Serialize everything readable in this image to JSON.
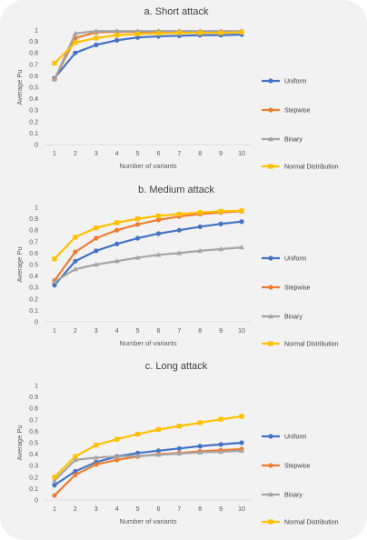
{
  "chart_data": [
    {
      "type": "line",
      "title": "a. Short attack",
      "xlabel": "Number of variants",
      "ylabel": "Average Pu",
      "ylim": [
        0,
        1
      ],
      "yticks": [
        "0",
        "0.1",
        "0.2",
        "0.3",
        "0.4",
        "0.5",
        "0.6",
        "0.7",
        "0.8",
        "0.9",
        "1"
      ],
      "categories": [
        "1",
        "2",
        "3",
        "4",
        "5",
        "6",
        "7",
        "8",
        "9",
        "10"
      ],
      "legend_position": "right",
      "grid": false,
      "series": [
        {
          "name": "Uniform",
          "color": "#4472c4",
          "values": [
            0.58,
            0.8,
            0.87,
            0.91,
            0.935,
            0.945,
            0.95,
            0.955,
            0.955,
            0.96
          ]
        },
        {
          "name": "Stepwise",
          "color": "#ed7d31",
          "values": [
            0.57,
            0.93,
            0.98,
            0.985,
            0.985,
            0.985,
            0.985,
            0.985,
            0.985,
            0.985
          ]
        },
        {
          "name": "Binary",
          "color": "#a5a5a5",
          "values": [
            0.57,
            0.97,
            0.99,
            0.99,
            0.99,
            0.99,
            0.99,
            0.99,
            0.99,
            0.99
          ]
        },
        {
          "name": "Normal Distribution",
          "color": "#ffc000",
          "values": [
            0.71,
            0.89,
            0.93,
            0.955,
            0.965,
            0.97,
            0.975,
            0.975,
            0.975,
            0.98
          ]
        }
      ]
    },
    {
      "type": "line",
      "title": "b. Medium attack",
      "xlabel": "Number of variants",
      "ylabel": "Average Pu",
      "ylim": [
        0,
        1
      ],
      "yticks": [
        "0",
        "0.1",
        "0.2",
        "0.3",
        "0.4",
        "0.5",
        "0.6",
        "0.7",
        "0.8",
        "0.9",
        "1"
      ],
      "categories": [
        "1",
        "2",
        "3",
        "4",
        "5",
        "6",
        "7",
        "8",
        "9",
        "10"
      ],
      "legend_position": "right",
      "grid": false,
      "series": [
        {
          "name": "Uniform",
          "color": "#4472c4",
          "values": [
            0.32,
            0.53,
            0.62,
            0.68,
            0.73,
            0.77,
            0.8,
            0.83,
            0.855,
            0.875
          ]
        },
        {
          "name": "Stepwise",
          "color": "#ed7d31",
          "values": [
            0.36,
            0.61,
            0.73,
            0.8,
            0.85,
            0.89,
            0.92,
            0.94,
            0.955,
            0.965
          ]
        },
        {
          "name": "Binary",
          "color": "#a5a5a5",
          "values": [
            0.35,
            0.46,
            0.5,
            0.53,
            0.56,
            0.585,
            0.6,
            0.62,
            0.635,
            0.65
          ]
        },
        {
          "name": "Normal Distribution",
          "color": "#ffc000",
          "values": [
            0.55,
            0.74,
            0.82,
            0.865,
            0.9,
            0.925,
            0.94,
            0.955,
            0.965,
            0.97
          ]
        }
      ]
    },
    {
      "type": "line",
      "title": "c. Long attack",
      "xlabel": "Number of variants",
      "ylabel": "Average Pu",
      "ylim": [
        0,
        1
      ],
      "yticks": [
        "0",
        "0.1",
        "0.2",
        "0.3",
        "0.4",
        "0.5",
        "0.6",
        "0.7",
        "0.8",
        "0.9",
        "1"
      ],
      "categories": [
        "1",
        "2",
        "3",
        "4",
        "5",
        "6",
        "7",
        "8",
        "9",
        "10"
      ],
      "legend_position": "right",
      "grid": false,
      "series": [
        {
          "name": "Uniform",
          "color": "#4472c4",
          "values": [
            0.13,
            0.25,
            0.33,
            0.38,
            0.41,
            0.43,
            0.45,
            0.47,
            0.485,
            0.5
          ]
        },
        {
          "name": "Stepwise",
          "color": "#ed7d31",
          "values": [
            0.04,
            0.22,
            0.31,
            0.35,
            0.38,
            0.4,
            0.41,
            0.425,
            0.435,
            0.445
          ]
        },
        {
          "name": "Binary",
          "color": "#a5a5a5",
          "values": [
            0.17,
            0.35,
            0.37,
            0.38,
            0.385,
            0.395,
            0.405,
            0.415,
            0.42,
            0.43
          ]
        },
        {
          "name": "Normal Distribution",
          "color": "#ffc000",
          "values": [
            0.2,
            0.38,
            0.48,
            0.53,
            0.575,
            0.615,
            0.645,
            0.675,
            0.705,
            0.73
          ]
        }
      ]
    }
  ]
}
